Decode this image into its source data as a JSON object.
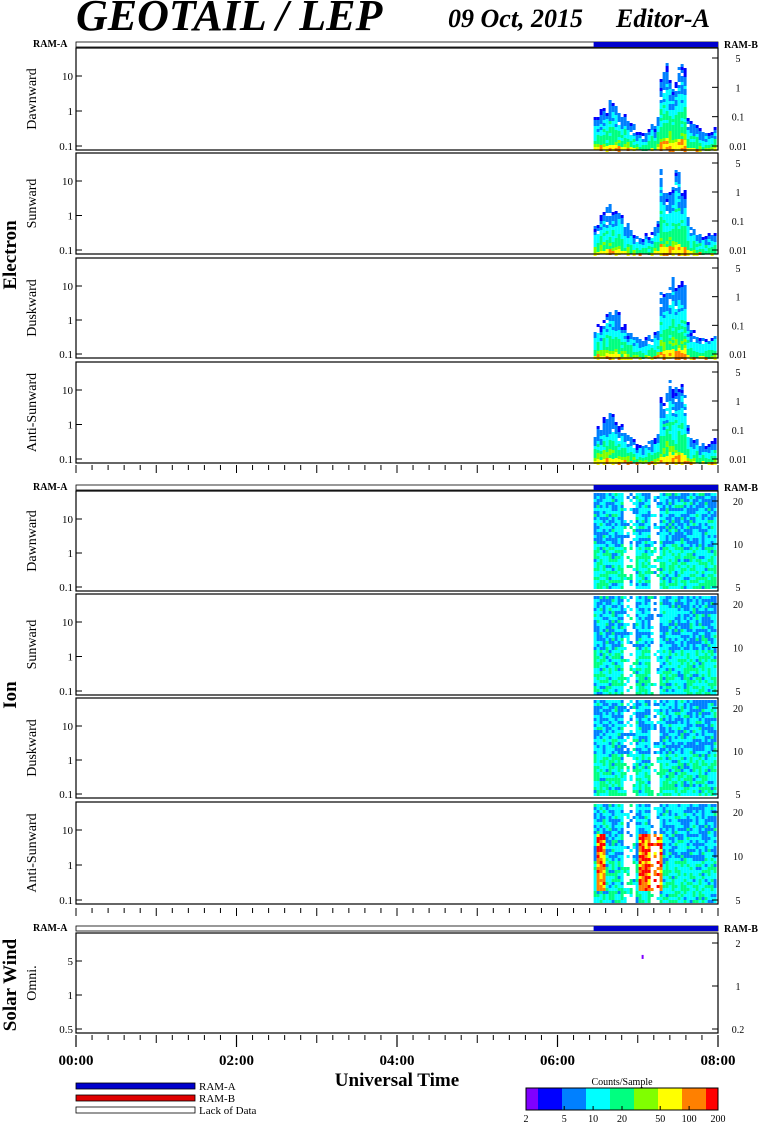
{
  "header": {
    "title": "GEOTAIL / LEP",
    "date": "09 Oct, 2015",
    "editor": "Editor-A"
  },
  "ram_labels": {
    "left": "RAM-A",
    "right": "RAM-B"
  },
  "groups": [
    {
      "name": "Electron",
      "panels": [
        "Dawnward",
        "Sunward",
        "Duskward",
        "Anti-Sunward"
      ]
    },
    {
      "name": "Ion",
      "panels": [
        "Dawnward",
        "Sunward",
        "Duskward",
        "Anti-Sunward"
      ]
    },
    {
      "name": "Solar Wind",
      "panels": [
        "Omni."
      ]
    }
  ],
  "x_axis": {
    "label": "Universal Time",
    "ticks": [
      "00:00",
      "02:00",
      "04:00",
      "06:00",
      "08:00"
    ],
    "range_hours": [
      0,
      8
    ]
  },
  "legend": {
    "entries": [
      {
        "label": "RAM-A",
        "color": "#0000cc"
      },
      {
        "label": "RAM-B",
        "color": "#e00000"
      },
      {
        "label": "Lack of Data",
        "color": "#ffffff"
      }
    ]
  },
  "colorbar": {
    "title": "Counts/Sample",
    "ticks": [
      "2",
      "5",
      "10",
      "20",
      "50",
      "100",
      "200"
    ],
    "colors": [
      "#8000ff",
      "#0000ff",
      "#0080ff",
      "#00ffff",
      "#00ff80",
      "#80ff00",
      "#ffff00",
      "#ff8000",
      "#ff0000"
    ]
  },
  "chart_data": {
    "type": "heatmap",
    "x_range_hours": [
      0,
      8
    ],
    "data_start_hour": 6.45,
    "ram_mode": {
      "RAM-A": [
        0,
        6.45
      ],
      "RAM-B": [
        6.45,
        8
      ]
    },
    "panels": [
      {
        "group": "Electron",
        "name": "Dawnward",
        "left_ticks": [
          "10",
          "1",
          "0.1"
        ],
        "right_ticks": [
          "5",
          "1",
          "0.1",
          "0.01"
        ],
        "style": "electron"
      },
      {
        "group": "Electron",
        "name": "Sunward",
        "left_ticks": [
          "10",
          "1",
          "0.1"
        ],
        "right_ticks": [
          "5",
          "1",
          "0.1",
          "0.01"
        ],
        "style": "electron"
      },
      {
        "group": "Electron",
        "name": "Duskward",
        "left_ticks": [
          "10",
          "1",
          "0.1"
        ],
        "right_ticks": [
          "5",
          "1",
          "0.1",
          "0.01"
        ],
        "style": "electron"
      },
      {
        "group": "Electron",
        "name": "Anti-Sunward",
        "left_ticks": [
          "10",
          "1",
          "0.1"
        ],
        "right_ticks": [
          "5",
          "1",
          "0.1",
          "0.01"
        ],
        "style": "electron"
      },
      {
        "group": "Ion",
        "name": "Dawnward",
        "left_ticks": [
          "10",
          "1",
          "0.1"
        ],
        "right_ticks": [
          "20",
          "10",
          "5"
        ],
        "style": "ion"
      },
      {
        "group": "Ion",
        "name": "Sunward",
        "left_ticks": [
          "10",
          "1",
          "0.1"
        ],
        "right_ticks": [
          "20",
          "10",
          "5"
        ],
        "style": "ion"
      },
      {
        "group": "Ion",
        "name": "Duskward",
        "left_ticks": [
          "10",
          "1",
          "0.1"
        ],
        "right_ticks": [
          "20",
          "10",
          "5"
        ],
        "style": "ion"
      },
      {
        "group": "Ion",
        "name": "Anti-Sunward",
        "left_ticks": [
          "10",
          "1",
          "0.1"
        ],
        "right_ticks": [
          "20",
          "10",
          "5"
        ],
        "style": "ion-hot"
      },
      {
        "group": "Solar Wind",
        "name": "Omni.",
        "left_ticks": [
          "5",
          "1",
          "0.5"
        ],
        "right_ticks": [
          "2",
          "1",
          "0.2"
        ],
        "style": "sw"
      }
    ]
  }
}
